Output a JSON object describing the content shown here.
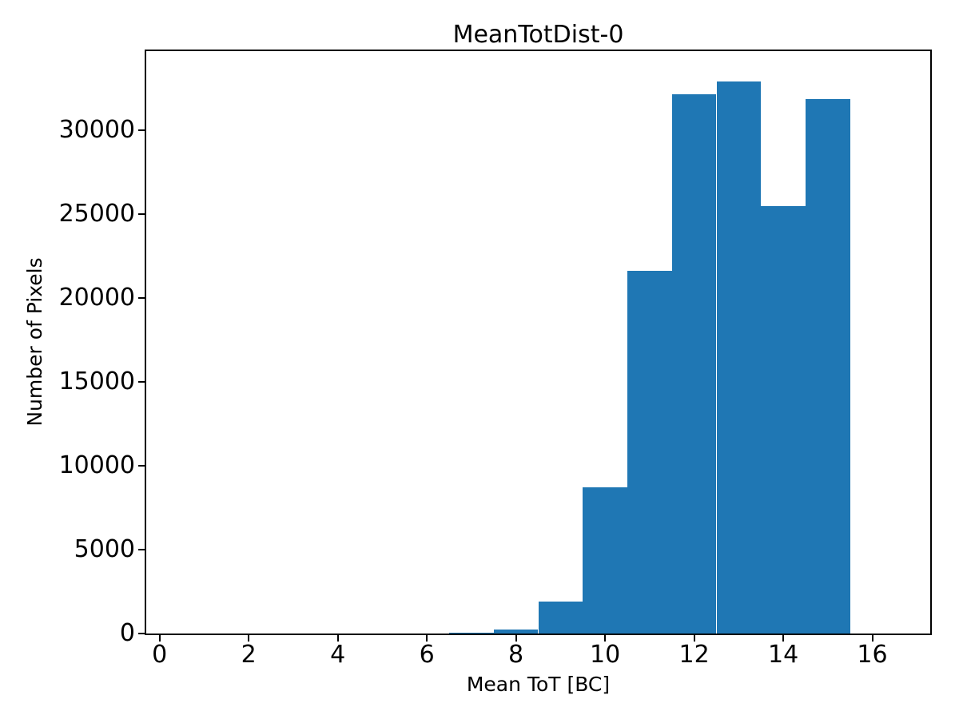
{
  "chart_data": {
    "type": "bar",
    "subtype": "histogram",
    "title": "MeanTotDist-0",
    "xlabel": "Mean ToT [BC]",
    "ylabel": "Number of Pixels",
    "bar_color": "#1f77b4",
    "background_color": "#ffffff",
    "grid": false,
    "legend": null,
    "bin_edges": [
      0.5,
      1.5,
      2.5,
      3.5,
      4.5,
      5.5,
      6.5,
      7.5,
      8.5,
      9.5,
      10.5,
      11.5,
      12.5,
      13.5,
      14.5,
      15.5,
      16.5
    ],
    "counts": [
      0,
      0,
      0,
      0,
      0,
      0,
      60,
      230,
      1890,
      8720,
      21620,
      32130,
      32890,
      25490,
      31840,
      0
    ],
    "xlim": [
      -0.3,
      17.3
    ],
    "ylim": [
      0,
      34700
    ],
    "xticks": [
      0,
      2,
      4,
      6,
      8,
      10,
      12,
      14,
      16
    ],
    "yticks": [
      0,
      5000,
      10000,
      15000,
      20000,
      25000,
      30000
    ]
  }
}
